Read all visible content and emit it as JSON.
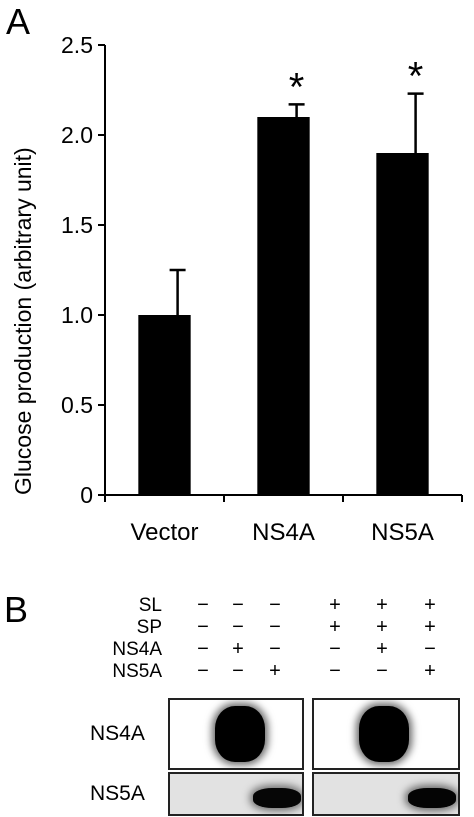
{
  "panel_a": {
    "letter": "A",
    "chart_data": {
      "type": "bar",
      "categories": [
        "Vector",
        "NS4A",
        "NS5A"
      ],
      "values": [
        1.0,
        2.1,
        1.9
      ],
      "errors": [
        0.25,
        0.07,
        0.33
      ],
      "significance": [
        "",
        "*",
        "*"
      ],
      "title": "",
      "xlabel": "",
      "ylabel": "Glucose production (arbitrary unit)",
      "ylim": [
        0,
        2.5
      ],
      "yticks": [
        0,
        0.5,
        1.0,
        1.5,
        2.0,
        2.5
      ],
      "ytick_labels": [
        "0",
        "0.5",
        "1.0",
        "1.5",
        "2.0",
        "2.5"
      ],
      "bar_color": "#000000",
      "grid": false
    }
  },
  "panel_b": {
    "letter": "B",
    "condition_rows": [
      {
        "label": "SL",
        "signs": [
          "−",
          "−",
          "−",
          "+",
          "+",
          "+"
        ]
      },
      {
        "label": "SP",
        "signs": [
          "−",
          "−",
          "−",
          "+",
          "+",
          "+"
        ]
      },
      {
        "label": "NS4A",
        "signs": [
          "−",
          "+",
          "−",
          "−",
          "+",
          "−"
        ]
      },
      {
        "label": "NS5A",
        "signs": [
          "−",
          "−",
          "+",
          "−",
          "−",
          "+"
        ]
      }
    ],
    "blots": [
      {
        "label": "NS4A",
        "band_intensity": [
          0,
          1,
          0,
          0,
          1,
          0
        ]
      },
      {
        "label": "NS5A",
        "band_intensity": [
          0,
          0,
          0.85,
          0,
          0,
          0.9
        ]
      }
    ]
  }
}
